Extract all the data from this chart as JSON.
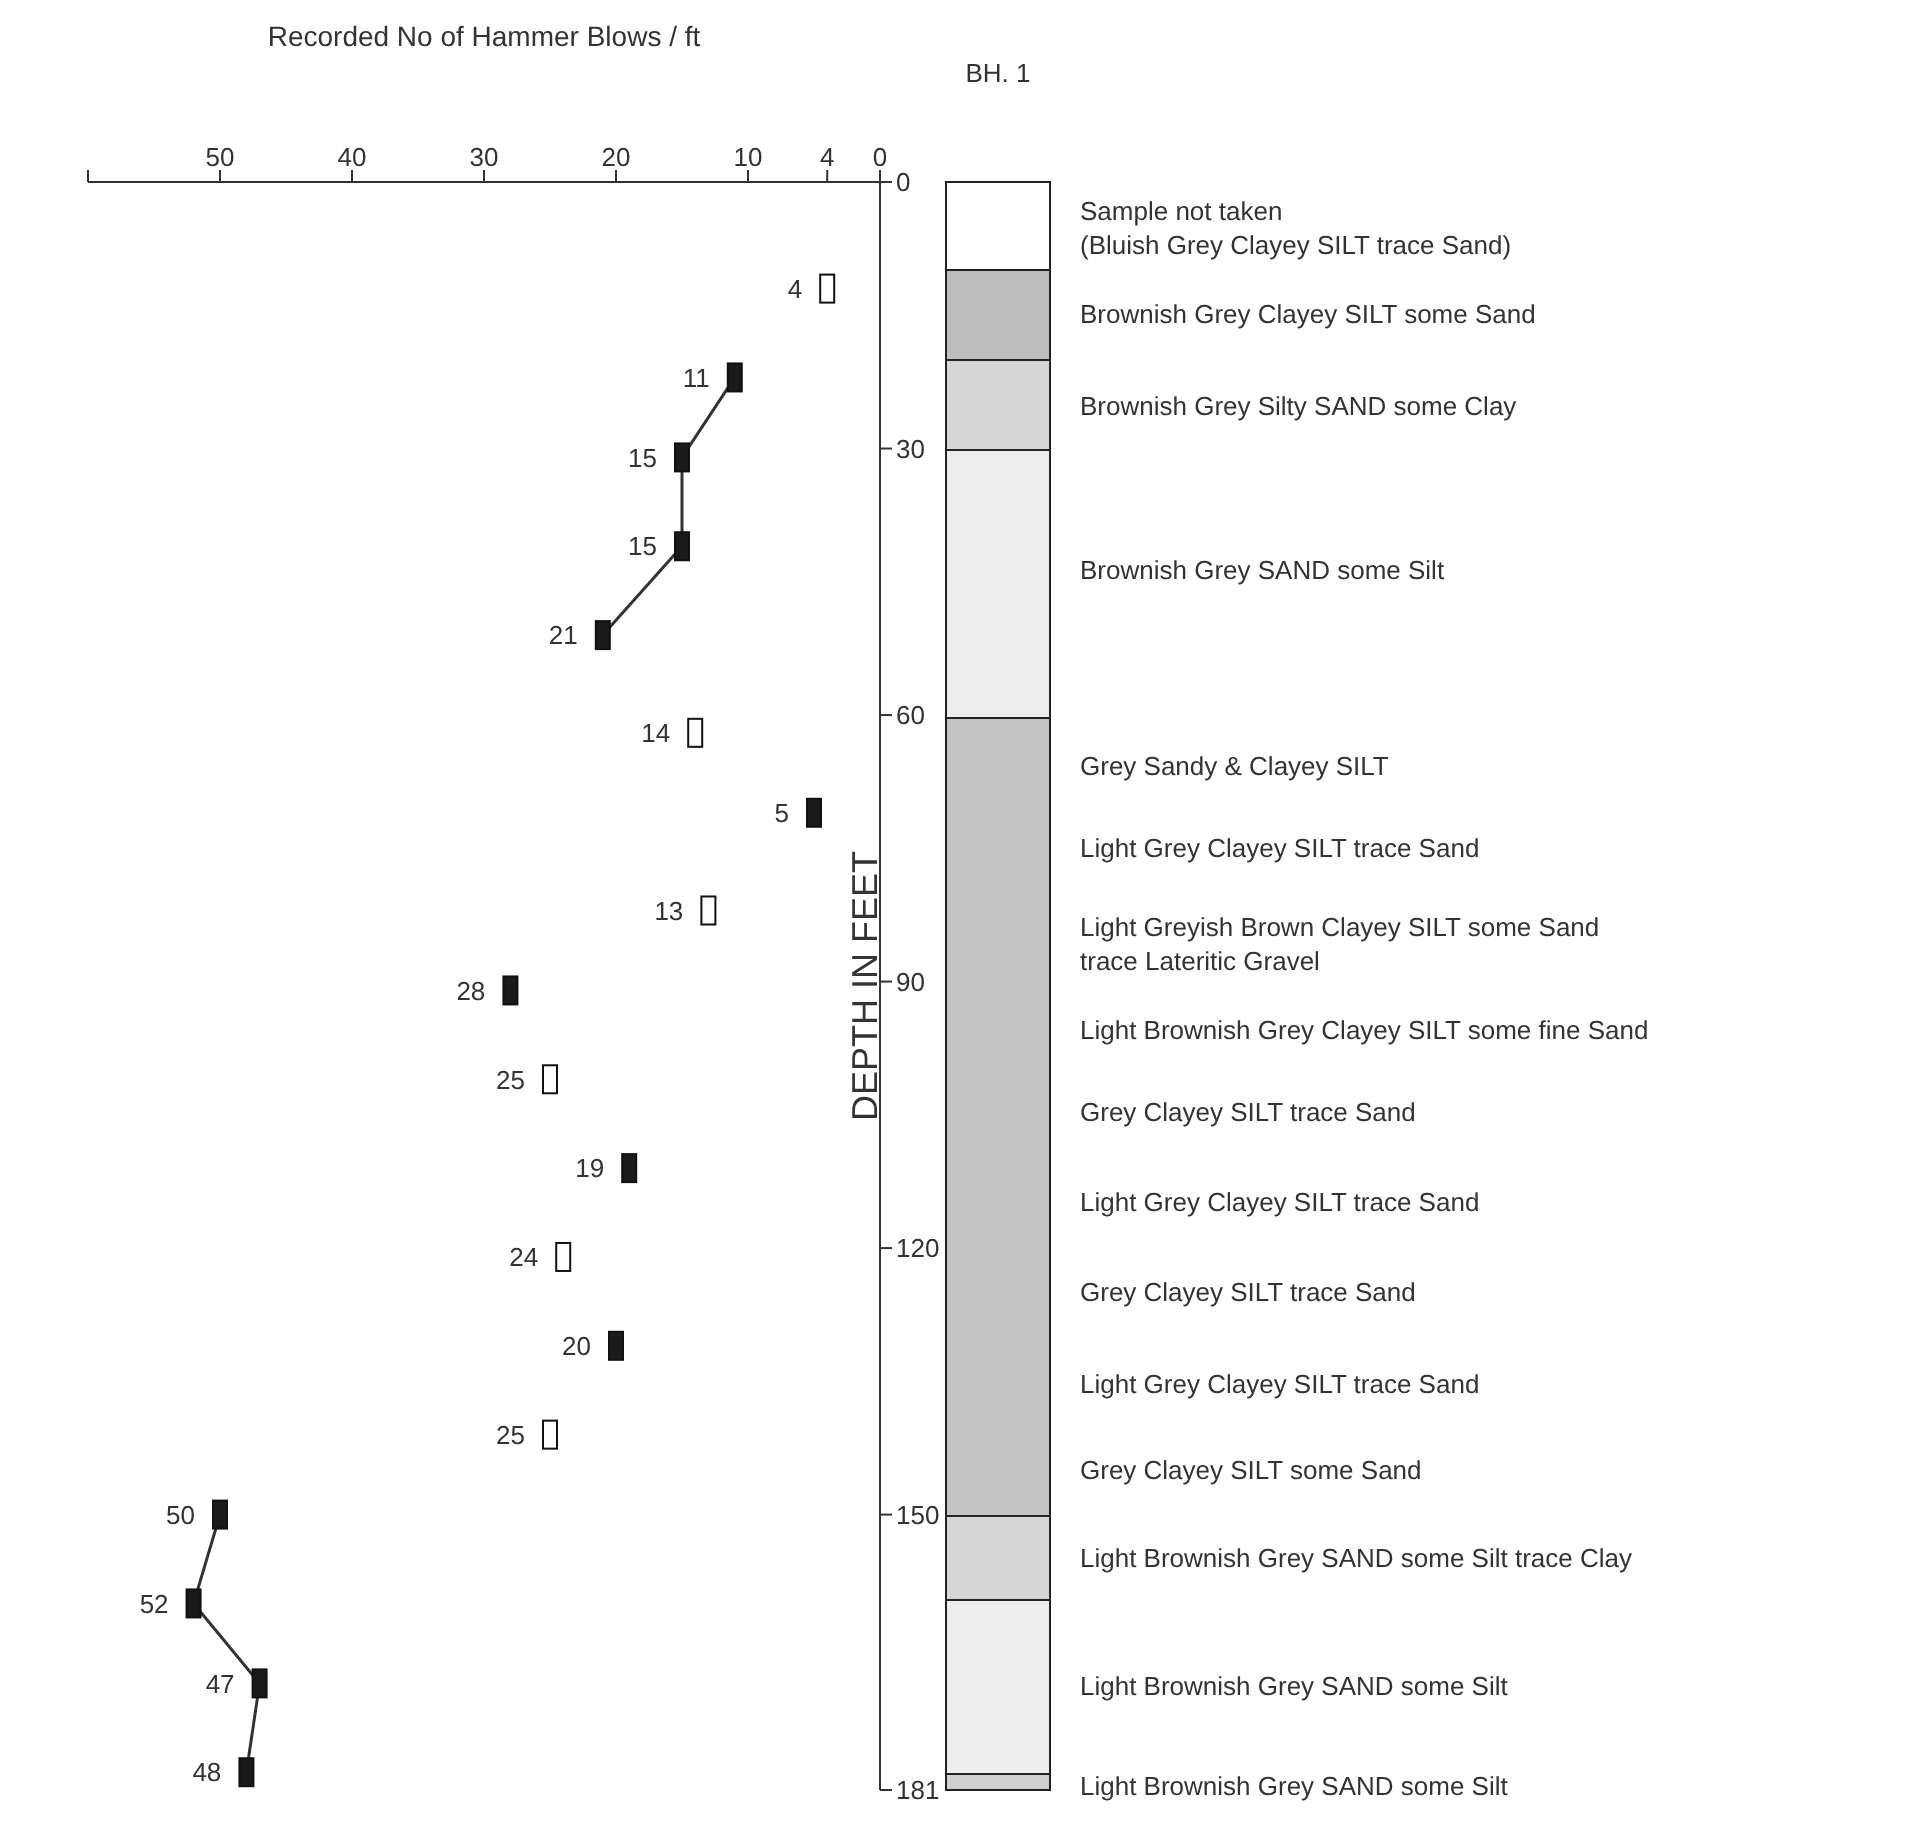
{
  "chart_data": {
    "type": "scatter",
    "orientation": "horizontal",
    "xlabel": "Recorded No of Hammer Blows / ft",
    "ylabel": "DEPTH IN FEET",
    "xlim": [
      60,
      0
    ],
    "xticks": [
      {
        "value": 60,
        "label": null
      },
      50,
      40,
      30,
      20,
      10,
      4,
      0
    ],
    "ylim": [
      181,
      0
    ],
    "yticks": [
      0,
      30,
      60,
      90,
      120,
      150,
      181
    ],
    "marker": "square",
    "series": [
      {
        "type": "line",
        "marker": "none",
        "color": "#333333",
        "x": [
          22,
          31,
          41,
          51
        ],
        "values": [
          11,
          15,
          15,
          21
        ]
      },
      {
        "type": "line",
        "marker": "none",
        "color": "#333333",
        "x": [
          150,
          160,
          169,
          179
        ],
        "values": [
          50,
          52,
          47,
          48
        ]
      },
      {
        "color": "#1a1a1a",
        "x": [
          22,
          31,
          41,
          51,
          71,
          91,
          111,
          131,
          150,
          160,
          169,
          179
        ],
        "values": [
          11,
          15,
          15,
          21,
          5,
          28,
          19,
          20,
          50,
          52,
          47,
          48
        ],
        "value_labels": [
          "11",
          "15",
          "15",
          "21",
          "5",
          "28",
          "19",
          "20",
          "50",
          "52",
          "47",
          "48"
        ]
      },
      {
        "color": "#ffffff",
        "x": [
          12,
          62,
          82,
          101,
          121,
          141
        ],
        "values": [
          4,
          14,
          13,
          25,
          24,
          25
        ],
        "value_labels": [
          "4",
          "14",
          "13",
          "25",
          "24",
          "25"
        ]
      }
    ],
    "annotations": [
      "BH. 1",
      "Sample not taken\n(Bluish Grey Clayey SILT trace Sand)",
      "Brownish Grey Clayey SILT some Sand",
      "Brownish Grey Silty SAND some Clay",
      "Brownish Grey SAND some Silt",
      "Grey Sandy & Clayey SILT",
      "Light Grey Clayey SILT trace Sand",
      "Light Greyish Brown Clayey SILT some Sand\ntrace Lateritic Gravel",
      "Light Brownish Grey Clayey SILT some fine Sand",
      "Grey Clayey SILT trace Sand",
      "Light Grey Clayey SILT trace Sand",
      "Grey Clayey SILT trace Sand",
      "Light Grey Clayey SILT trace Sand",
      "Grey Clayey SILT some Sand",
      "Light Brownish Grey SAND some Silt trace Clay",
      "Light Brownish Grey SAND some Silt",
      "Light Brownish Grey SAND some Silt"
    ]
  }
}
